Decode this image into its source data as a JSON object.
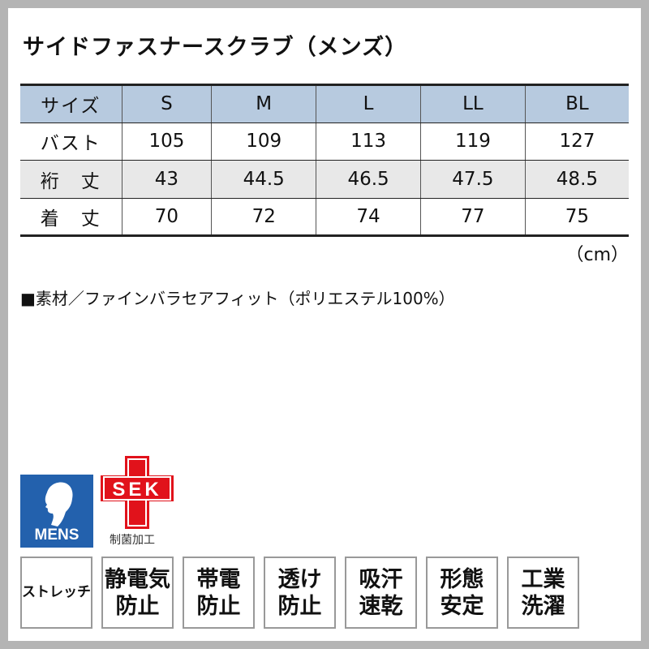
{
  "title": "サイドファスナースクラブ（メンズ）",
  "table": {
    "header": [
      "サイズ",
      "S",
      "M",
      "L",
      "LL",
      "BL"
    ],
    "rows": [
      [
        "バスト",
        "105",
        "109",
        "113",
        "119",
        "127"
      ],
      [
        "裄　丈",
        "43",
        "44.5",
        "46.5",
        "47.5",
        "48.5"
      ],
      [
        "着　丈",
        "70",
        "72",
        "74",
        "77",
        "75"
      ]
    ]
  },
  "unit": "（cm）",
  "material": "■素材／ファインバラセアフィット（ポリエステル100%）",
  "icons": {
    "mens_label": "MENS",
    "sek_label": "SEK",
    "sek_caption": "制菌加工",
    "mens_color": "#2361ad",
    "sek_color": "#e1121b"
  },
  "badges": [
    {
      "l1": "ストレッチ",
      "l2": ""
    },
    {
      "l1": "静電気",
      "l2": "防止"
    },
    {
      "l1": "帯電",
      "l2": "防止"
    },
    {
      "l1": "透け",
      "l2": "防止"
    },
    {
      "l1": "吸汗",
      "l2": "速乾"
    },
    {
      "l1": "形態",
      "l2": "安定"
    },
    {
      "l1": "工業",
      "l2": "洗濯"
    }
  ]
}
